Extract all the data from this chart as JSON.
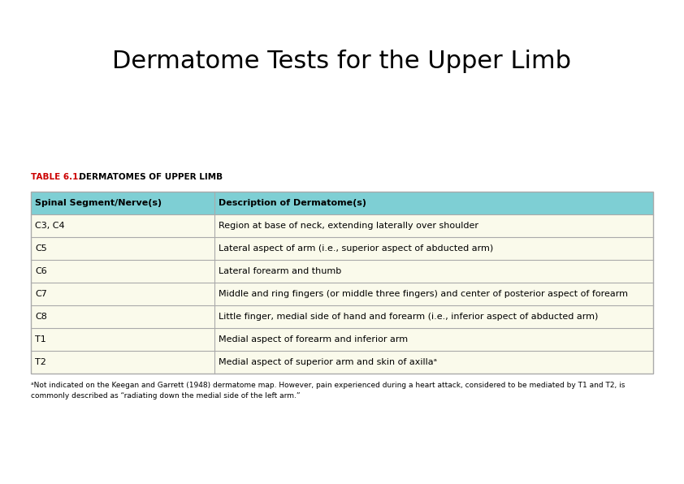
{
  "title": "Dermatome Tests for the Upper Limb",
  "table_label": "TABLE 6.1.",
  "table_title": "  DERMATOMES OF UPPER LIMB",
  "col_headers": [
    "Spinal Segment/Nerve(s)",
    "Description of Dermatome(s)"
  ],
  "rows": [
    [
      "C3, C4",
      "Region at base of neck, extending laterally over shoulder"
    ],
    [
      "C5",
      "Lateral aspect of arm (i.e., superior aspect of abducted arm)"
    ],
    [
      "C6",
      "Lateral forearm and thumb"
    ],
    [
      "C7",
      "Middle and ring fingers (or middle three fingers) and center of posterior aspect of forearm"
    ],
    [
      "C8",
      "Little finger, medial side of hand and forearm (i.e., inferior aspect of abducted arm)"
    ],
    [
      "T1",
      "Medial aspect of forearm and inferior arm"
    ],
    [
      "T2",
      "Medial aspect of superior arm and skin of axillaᵃ"
    ]
  ],
  "footnote_line1": "ᵃNot indicated on the Keegan and Garrett (1948) dermatome map. However, pain experienced during a heart attack, considered to be mediated by T1 and T2, is",
  "footnote_line2": "commonly described as “radiating down the medial side of the left arm.”",
  "header_bg": "#7ecfd4",
  "row_bg": "#fafaeb",
  "table_border_color": "#aaaaaa",
  "header_text_color": "#000000",
  "table_label_color": "#cc0000",
  "title_fontsize": 22,
  "header_fontsize": 8,
  "cell_fontsize": 8,
  "footnote_fontsize": 6.5,
  "background_color": "#ffffff"
}
